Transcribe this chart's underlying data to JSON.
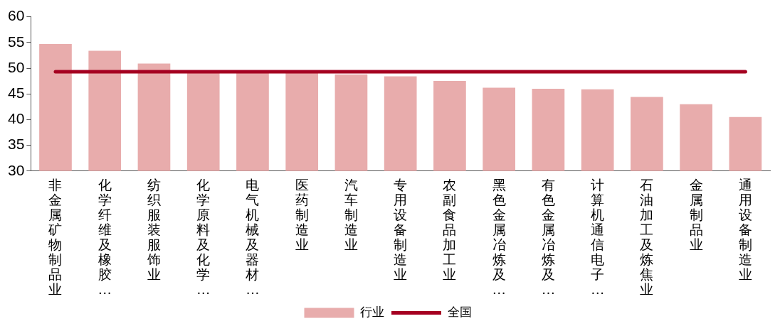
{
  "chart_data": {
    "type": "bar",
    "categories": [
      "非金属矿物制品业",
      "化学纤维及橡胶…",
      "纺织服装服饰业",
      "化学原料及化学…",
      "电气机械及器材…",
      "医药制造业",
      "汽车制造业",
      "专用设备制造业",
      "农副食品加工业",
      "黑色金属冶炼及…",
      "有色金属冶炼及…",
      "计算机通信电子…",
      "石油加工及炼焦业",
      "金属制品业",
      "通用设备制造业"
    ],
    "series": [
      {
        "name": "行业",
        "color": "#e8acac",
        "values": [
          54.7,
          53.4,
          50.9,
          49.2,
          49.2,
          49.2,
          48.8,
          48.4,
          47.5,
          46.2,
          46.0,
          45.9,
          44.4,
          43.0,
          40.5
        ]
      },
      {
        "name": "全国",
        "type": "line",
        "color": "#a50021",
        "values": [
          49.3,
          49.3,
          49.3,
          49.3,
          49.3,
          49.3,
          49.3,
          49.3,
          49.3,
          49.3,
          49.3,
          49.3,
          49.3,
          49.3,
          49.3
        ]
      }
    ],
    "ylim": [
      30,
      60
    ],
    "yticks": [
      30,
      35,
      40,
      45,
      50,
      55,
      60
    ],
    "grid": false,
    "legend": "bottom",
    "marker": "none"
  }
}
